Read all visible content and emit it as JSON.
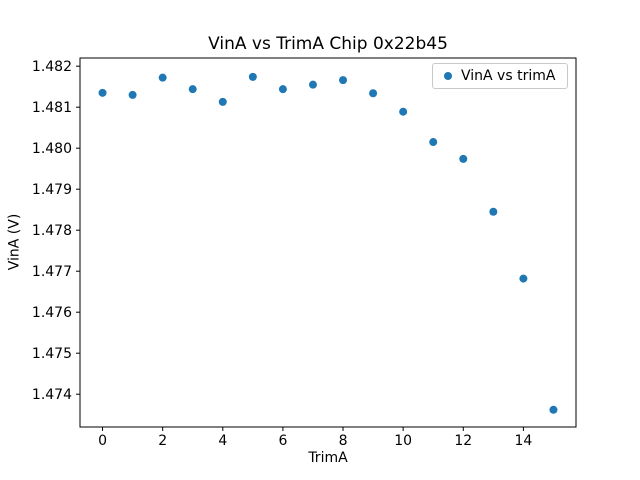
{
  "chart_data": {
    "type": "scatter",
    "title": "VinA vs TrimA Chip 0x22b45",
    "xlabel": "TrimA",
    "ylabel": "VinA (V)",
    "legend_label": "VinA vs trimA",
    "legend_position": "upper right",
    "point_color": "#1f77b4",
    "grid": false,
    "x": [
      0,
      1,
      2,
      3,
      4,
      5,
      6,
      7,
      8,
      9,
      10,
      11,
      12,
      13,
      14,
      15
    ],
    "y": [
      1.48135,
      1.4813,
      1.48172,
      1.48144,
      1.48113,
      1.48174,
      1.48144,
      1.48155,
      1.48166,
      1.48134,
      1.48089,
      1.48015,
      1.47974,
      1.47845,
      1.47682,
      1.47362
    ],
    "xlim": [
      -0.75,
      15.75
    ],
    "ylim": [
      1.4732,
      1.4822
    ],
    "xticks": [
      0,
      2,
      4,
      6,
      8,
      10,
      12,
      14
    ],
    "xtick_labels": [
      "0",
      "2",
      "4",
      "6",
      "8",
      "10",
      "12",
      "14"
    ],
    "yticks": [
      1.474,
      1.475,
      1.476,
      1.477,
      1.478,
      1.479,
      1.48,
      1.481,
      1.482
    ],
    "ytick_labels": [
      "1.474",
      "1.475",
      "1.476",
      "1.477",
      "1.478",
      "1.479",
      "1.480",
      "1.481",
      "1.482"
    ]
  }
}
